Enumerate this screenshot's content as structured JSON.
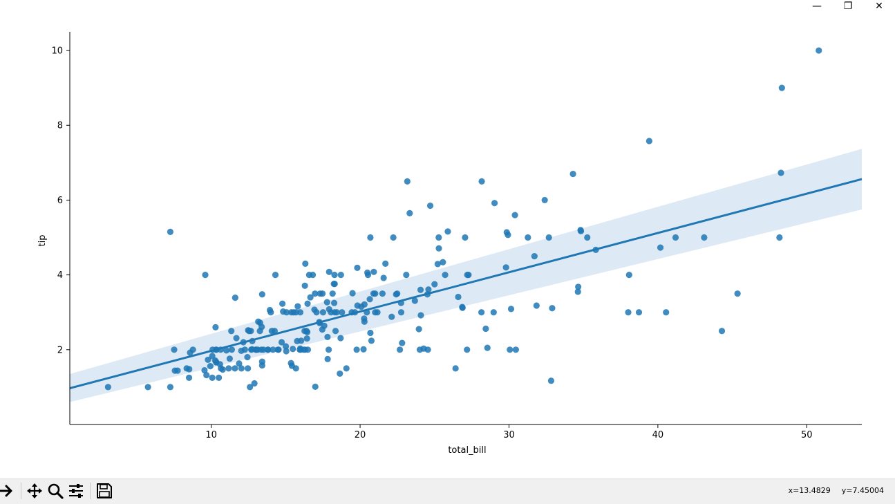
{
  "window": {
    "minimize_glyph": "—",
    "restore_glyph": "❐",
    "close_glyph": "✕"
  },
  "toolbar": {
    "tools": [
      "forward-arrow-icon",
      "pan-move-icon",
      "zoom-magnifier-icon",
      "configure-subplots-icon",
      "save-floppy-icon"
    ],
    "coords": {
      "x": "x=13.4829",
      "y": "y=7.45004"
    }
  },
  "chart_data": {
    "type": "scatter",
    "xlabel": "total_bill",
    "ylabel": "tip",
    "xlim": [
      0.5,
      53.7
    ],
    "ylim": [
      0,
      10.5
    ],
    "xticks": [
      10,
      20,
      30,
      40,
      50
    ],
    "yticks": [
      2,
      4,
      6,
      8,
      10
    ],
    "grid": false,
    "colors": {
      "points": "#1f77b4",
      "line": "#1f77b4",
      "ci_band": "#c6dbef"
    },
    "regression": {
      "x": [
        0.5,
        53.7
      ],
      "y": [
        0.97,
        6.56
      ],
      "ci_lower": [
        0.6,
        5.75
      ],
      "ci_upper": [
        1.35,
        7.37
      ]
    },
    "points": [
      [
        16.99,
        1.01
      ],
      [
        10.34,
        1.66
      ],
      [
        21.01,
        3.5
      ],
      [
        23.68,
        3.31
      ],
      [
        24.59,
        3.61
      ],
      [
        25.29,
        4.71
      ],
      [
        8.77,
        2.0
      ],
      [
        26.88,
        3.12
      ],
      [
        15.04,
        1.96
      ],
      [
        14.78,
        3.23
      ],
      [
        10.27,
        1.71
      ],
      [
        35.26,
        5.0
      ],
      [
        15.42,
        1.57
      ],
      [
        18.43,
        3.0
      ],
      [
        14.83,
        3.02
      ],
      [
        21.58,
        3.92
      ],
      [
        10.33,
        1.67
      ],
      [
        16.29,
        3.71
      ],
      [
        16.97,
        3.5
      ],
      [
        20.65,
        3.35
      ],
      [
        17.92,
        4.08
      ],
      [
        20.29,
        2.75
      ],
      [
        15.77,
        2.23
      ],
      [
        39.42,
        7.58
      ],
      [
        19.82,
        3.18
      ],
      [
        17.81,
        2.34
      ],
      [
        13.37,
        2.0
      ],
      [
        12.69,
        2.0
      ],
      [
        21.7,
        4.3
      ],
      [
        19.65,
        3.0
      ],
      [
        9.55,
        1.45
      ],
      [
        18.35,
        2.5
      ],
      [
        15.06,
        3.0
      ],
      [
        20.69,
        2.45
      ],
      [
        17.78,
        3.27
      ],
      [
        24.06,
        3.6
      ],
      [
        16.31,
        2.0
      ],
      [
        16.93,
        3.07
      ],
      [
        18.69,
        2.31
      ],
      [
        31.27,
        5.0
      ],
      [
        16.04,
        2.24
      ],
      [
        17.46,
        2.54
      ],
      [
        13.94,
        3.06
      ],
      [
        9.68,
        1.32
      ],
      [
        30.4,
        5.6
      ],
      [
        18.29,
        3.0
      ],
      [
        22.23,
        5.0
      ],
      [
        32.4,
        6.0
      ],
      [
        28.55,
        2.05
      ],
      [
        18.04,
        3.0
      ],
      [
        12.54,
        2.5
      ],
      [
        10.29,
        2.6
      ],
      [
        34.81,
        5.2
      ],
      [
        9.94,
        1.56
      ],
      [
        25.56,
        4.34
      ],
      [
        19.49,
        3.51
      ],
      [
        38.01,
        3.0
      ],
      [
        26.41,
        1.5
      ],
      [
        11.24,
        1.76
      ],
      [
        48.27,
        6.73
      ],
      [
        20.29,
        3.21
      ],
      [
        13.81,
        2.0
      ],
      [
        11.02,
        1.98
      ],
      [
        18.29,
        3.76
      ],
      [
        17.59,
        2.64
      ],
      [
        20.08,
        3.15
      ],
      [
        16.45,
        2.47
      ],
      [
        3.07,
        1.0
      ],
      [
        20.23,
        2.01
      ],
      [
        15.01,
        2.09
      ],
      [
        12.02,
        1.97
      ],
      [
        17.07,
        3.0
      ],
      [
        26.86,
        3.14
      ],
      [
        25.28,
        5.0
      ],
      [
        14.73,
        2.2
      ],
      [
        10.51,
        1.25
      ],
      [
        17.92,
        3.08
      ],
      [
        27.2,
        4.0
      ],
      [
        22.76,
        3.0
      ],
      [
        17.29,
        2.71
      ],
      [
        19.44,
        3.0
      ],
      [
        16.66,
        3.4
      ],
      [
        10.07,
        1.83
      ],
      [
        32.68,
        5.0
      ],
      [
        15.98,
        2.03
      ],
      [
        34.83,
        5.17
      ],
      [
        13.03,
        2.0
      ],
      [
        18.28,
        4.0
      ],
      [
        24.71,
        5.85
      ],
      [
        21.16,
        3.0
      ],
      [
        28.97,
        3.0
      ],
      [
        22.49,
        3.5
      ],
      [
        5.75,
        1.0
      ],
      [
        16.32,
        4.3
      ],
      [
        22.75,
        3.25
      ],
      [
        40.17,
        4.73
      ],
      [
        27.28,
        4.0
      ],
      [
        12.03,
        1.5
      ],
      [
        21.01,
        3.0
      ],
      [
        12.46,
        1.5
      ],
      [
        11.35,
        2.5
      ],
      [
        15.38,
        3.0
      ],
      [
        44.3,
        2.5
      ],
      [
        22.42,
        3.48
      ],
      [
        20.92,
        4.08
      ],
      [
        15.36,
        1.64
      ],
      [
        20.49,
        4.06
      ],
      [
        25.21,
        4.29
      ],
      [
        18.24,
        3.76
      ],
      [
        14.31,
        4.0
      ],
      [
        14.0,
        3.0
      ],
      [
        7.25,
        1.0
      ],
      [
        38.07,
        4.0
      ],
      [
        23.95,
        2.55
      ],
      [
        25.71,
        4.0
      ],
      [
        17.31,
        3.5
      ],
      [
        29.93,
        5.07
      ],
      [
        10.65,
        1.5
      ],
      [
        12.43,
        1.8
      ],
      [
        24.08,
        2.92
      ],
      [
        11.69,
        2.31
      ],
      [
        13.42,
        1.68
      ],
      [
        14.26,
        2.5
      ],
      [
        15.95,
        2.0
      ],
      [
        12.48,
        2.52
      ],
      [
        29.8,
        4.2
      ],
      [
        8.52,
        1.48
      ],
      [
        14.52,
        2.0
      ],
      [
        11.38,
        2.0
      ],
      [
        22.82,
        2.18
      ],
      [
        19.08,
        1.5
      ],
      [
        20.27,
        2.83
      ],
      [
        11.17,
        1.5
      ],
      [
        12.26,
        2.0
      ],
      [
        18.26,
        3.25
      ],
      [
        8.51,
        1.25
      ],
      [
        10.33,
        2.0
      ],
      [
        14.15,
        2.0
      ],
      [
        16.0,
        2.0
      ],
      [
        13.16,
        2.75
      ],
      [
        17.47,
        3.5
      ],
      [
        34.3,
        6.7
      ],
      [
        41.19,
        5.0
      ],
      [
        27.05,
        5.0
      ],
      [
        16.43,
        2.3
      ],
      [
        8.35,
        1.5
      ],
      [
        18.64,
        1.36
      ],
      [
        11.87,
        1.63
      ],
      [
        9.78,
        1.73
      ],
      [
        7.51,
        2.0
      ],
      [
        14.07,
        2.5
      ],
      [
        13.13,
        2.0
      ],
      [
        17.26,
        2.74
      ],
      [
        24.55,
        2.0
      ],
      [
        19.77,
        2.0
      ],
      [
        29.85,
        5.14
      ],
      [
        48.17,
        5.0
      ],
      [
        25.0,
        3.75
      ],
      [
        13.39,
        2.61
      ],
      [
        16.49,
        2.0
      ],
      [
        21.5,
        3.5
      ],
      [
        12.66,
        2.5
      ],
      [
        16.21,
        2.0
      ],
      [
        13.81,
        2.0
      ],
      [
        17.51,
        3.0
      ],
      [
        24.52,
        3.48
      ],
      [
        20.76,
        2.24
      ],
      [
        31.71,
        4.5
      ],
      [
        10.59,
        1.61
      ],
      [
        10.63,
        2.0
      ],
      [
        50.81,
        10.0
      ],
      [
        15.81,
        3.16
      ],
      [
        7.25,
        5.15
      ],
      [
        31.85,
        3.18
      ],
      [
        16.82,
        4.0
      ],
      [
        32.9,
        3.11
      ],
      [
        17.89,
        2.0
      ],
      [
        14.48,
        2.0
      ],
      [
        9.6,
        4.0
      ],
      [
        34.63,
        3.55
      ],
      [
        34.65,
        3.68
      ],
      [
        23.33,
        5.65
      ],
      [
        45.35,
        3.5
      ],
      [
        23.17,
        6.5
      ],
      [
        40.55,
        3.0
      ],
      [
        20.69,
        5.0
      ],
      [
        20.9,
        3.5
      ],
      [
        30.46,
        2.0
      ],
      [
        18.15,
        3.5
      ],
      [
        23.1,
        4.0
      ],
      [
        15.69,
        1.5
      ],
      [
        19.81,
        4.19
      ],
      [
        28.44,
        2.56
      ],
      [
        15.48,
        2.02
      ],
      [
        16.58,
        4.0
      ],
      [
        7.56,
        1.44
      ],
      [
        10.34,
        2.0
      ],
      [
        43.11,
        5.0
      ],
      [
        13.0,
        2.0
      ],
      [
        13.51,
        2.0
      ],
      [
        18.71,
        4.0
      ],
      [
        12.74,
        2.01
      ],
      [
        13.0,
        2.0
      ],
      [
        16.4,
        2.5
      ],
      [
        20.53,
        4.0
      ],
      [
        16.47,
        3.23
      ],
      [
        26.59,
        3.41
      ],
      [
        38.73,
        3.0
      ],
      [
        24.27,
        2.03
      ],
      [
        12.76,
        2.23
      ],
      [
        30.06,
        2.0
      ],
      [
        25.89,
        5.16
      ],
      [
        48.33,
        9.0
      ],
      [
        13.27,
        2.5
      ],
      [
        28.17,
        6.5
      ],
      [
        12.9,
        1.1
      ],
      [
        28.15,
        3.0
      ],
      [
        11.59,
        1.5
      ],
      [
        7.74,
        1.44
      ],
      [
        30.14,
        3.09
      ],
      [
        12.16,
        2.2
      ],
      [
        13.42,
        3.48
      ],
      [
        8.58,
        1.92
      ],
      [
        15.98,
        3.0
      ],
      [
        13.42,
        1.58
      ],
      [
        16.27,
        2.5
      ],
      [
        10.09,
        2.0
      ],
      [
        20.45,
        3.0
      ],
      [
        13.28,
        2.72
      ],
      [
        22.12,
        2.88
      ],
      [
        24.01,
        2.0
      ],
      [
        15.69,
        3.0
      ],
      [
        11.61,
        3.39
      ],
      [
        10.77,
        1.47
      ],
      [
        15.53,
        3.0
      ],
      [
        10.07,
        1.25
      ],
      [
        12.6,
        1.0
      ],
      [
        32.83,
        1.17
      ],
      [
        35.83,
        4.67
      ],
      [
        29.03,
        5.92
      ],
      [
        27.18,
        2.0
      ],
      [
        22.67,
        2.0
      ],
      [
        17.82,
        1.75
      ],
      [
        18.78,
        3.0
      ]
    ]
  }
}
